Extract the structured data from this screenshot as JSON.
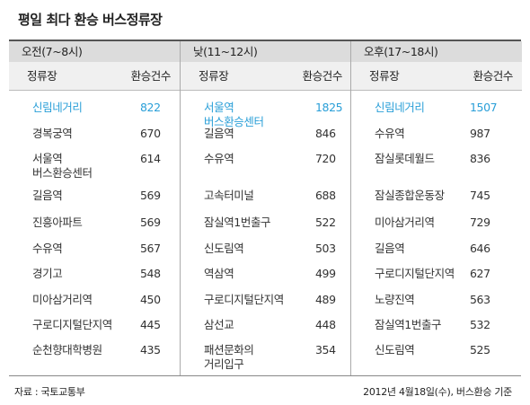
{
  "title": "평일 최다 환승 버스정류장",
  "table": {
    "name_header": "정류장",
    "count_header": "환승건수",
    "columns": [
      {
        "period": "오전(7~8시)",
        "rows": [
          {
            "name": "신림네거리",
            "count": "822",
            "highlight": true
          },
          {
            "name": "경복궁역",
            "count": "670"
          },
          {
            "name": "서울역\n버스환승센터",
            "count": "614"
          },
          {
            "name": "길음역",
            "count": "569"
          },
          {
            "name": "진흥아파트",
            "count": "569"
          },
          {
            "name": "수유역",
            "count": "567"
          },
          {
            "name": "경기고",
            "count": "548"
          },
          {
            "name": "미아삼거리역",
            "count": "450"
          },
          {
            "name": "구로디지털단지역",
            "count": "445"
          },
          {
            "name": "순천향대학병원",
            "count": "435"
          }
        ]
      },
      {
        "period": "낮(11~12시)",
        "rows": [
          {
            "name": "서울역\n버스환승센터",
            "count": "1825",
            "highlight": true
          },
          {
            "name": "길음역",
            "count": "846"
          },
          {
            "name": "수유역",
            "count": "720"
          },
          {
            "name": "고속터미널",
            "count": "688"
          },
          {
            "name": "잠실역1번출구",
            "count": "522"
          },
          {
            "name": "신도림역",
            "count": "503"
          },
          {
            "name": "역삼역",
            "count": "499"
          },
          {
            "name": "구로디지털단지역",
            "count": "489"
          },
          {
            "name": "삼선교",
            "count": "448"
          },
          {
            "name": "패션문화의\n거리입구",
            "count": "354"
          }
        ]
      },
      {
        "period": "오후(17~18시)",
        "rows": [
          {
            "name": "신림네거리",
            "count": "1507",
            "highlight": true
          },
          {
            "name": "수유역",
            "count": "987"
          },
          {
            "name": "잠실롯데월드",
            "count": "836"
          },
          {
            "name": "잠실종합운동장",
            "count": "745"
          },
          {
            "name": "미아삼거리역",
            "count": "729"
          },
          {
            "name": "길음역",
            "count": "646"
          },
          {
            "name": "구로디지털단지역",
            "count": "627"
          },
          {
            "name": "노량진역",
            "count": "563"
          },
          {
            "name": "잠실역1번출구",
            "count": "532"
          },
          {
            "name": "신도림역",
            "count": "525"
          }
        ]
      }
    ]
  },
  "footer": {
    "source": "자료 : 국토교통부",
    "note": "2012년 4월18일(수), 버스환승 기준"
  },
  "colors": {
    "highlight": "#2a9fd8",
    "period_bg": "#dcdcdc",
    "header_bg": "#f0f0f0"
  }
}
